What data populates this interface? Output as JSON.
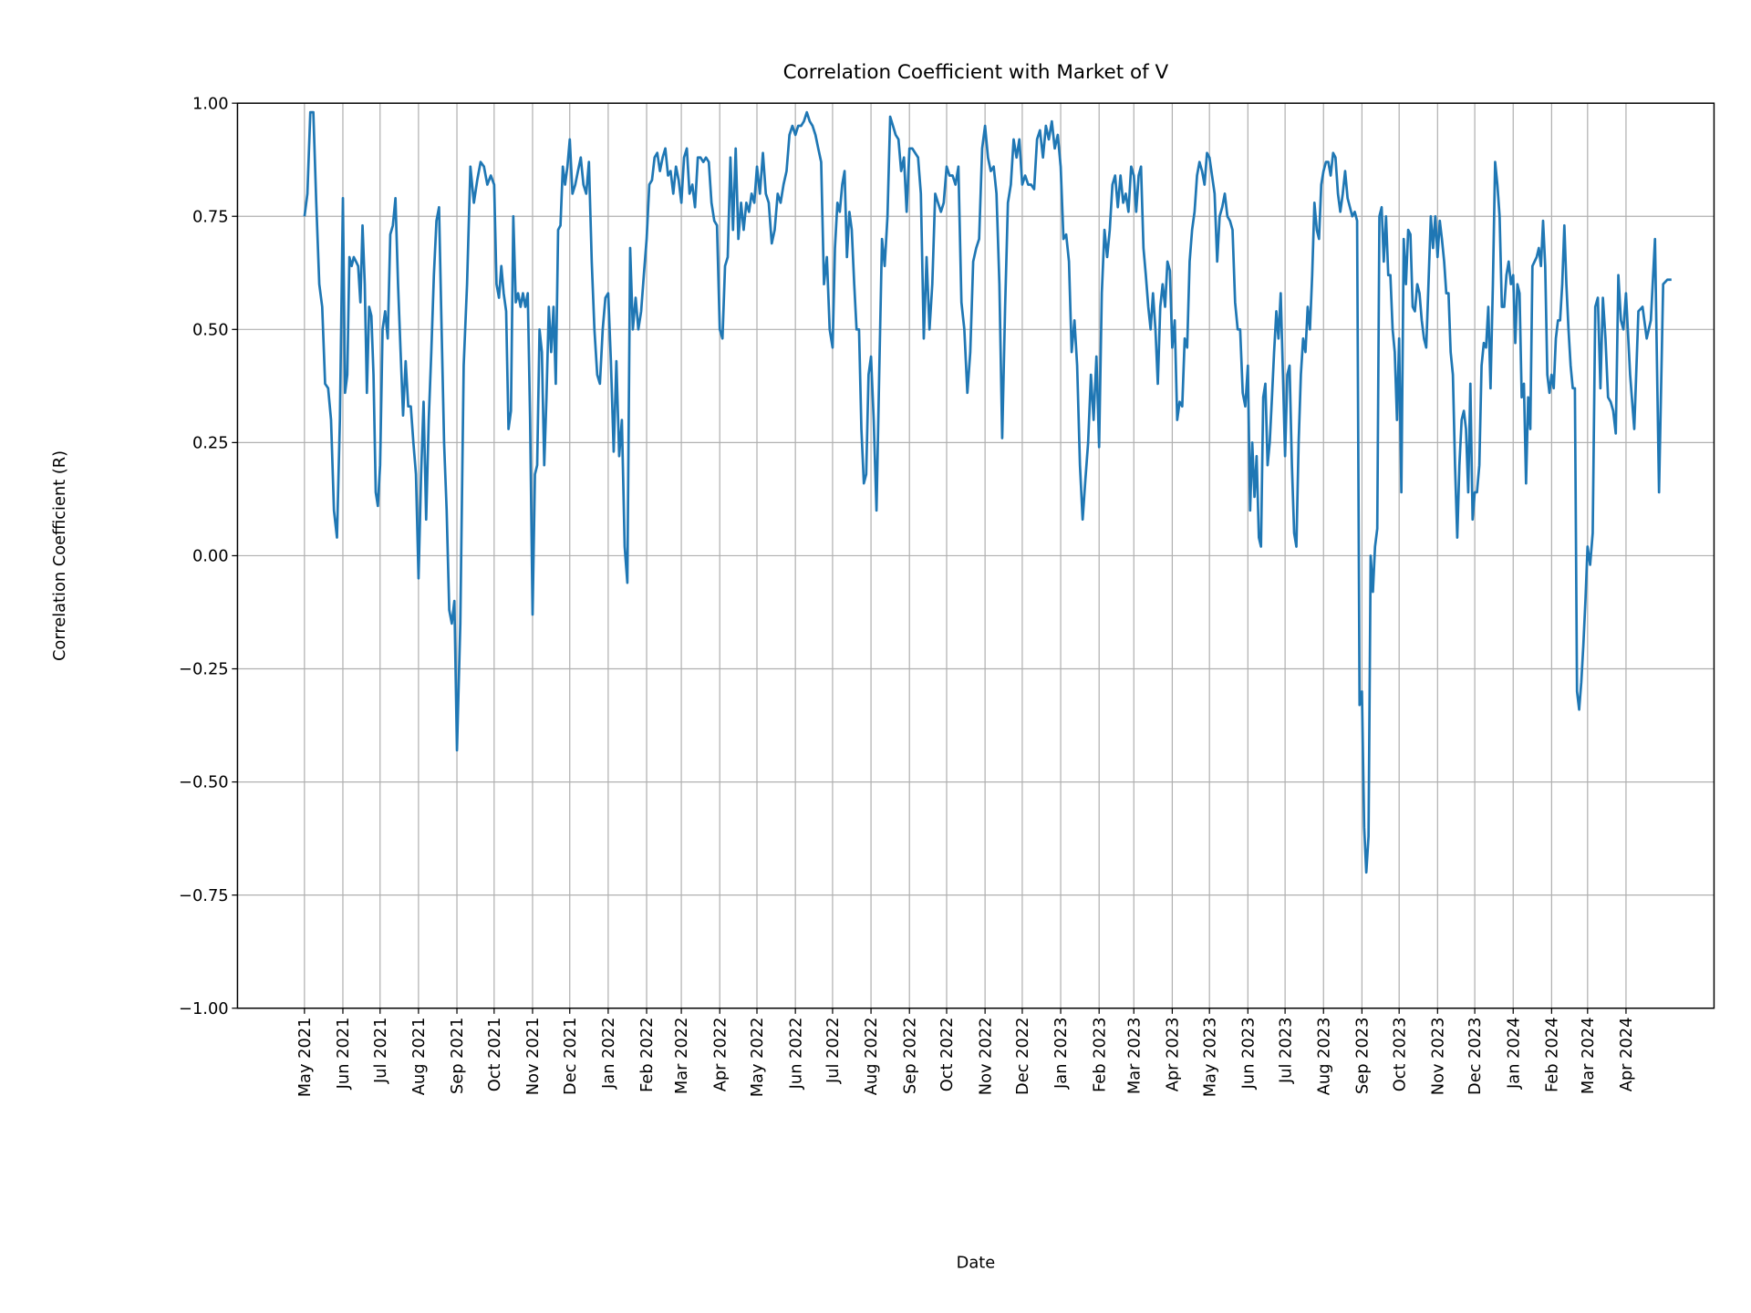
{
  "chart_data": {
    "type": "line",
    "title": "Correlation Coefficient with Market of V",
    "xlabel": "Date",
    "ylabel": "Correlation Coefficient (R)",
    "ylim": [
      -1.0,
      1.0
    ],
    "xlim": [
      "2021-03-08",
      "2024-06-11"
    ],
    "grid": true,
    "legend": "none",
    "line_color": "#1f77b4",
    "grid_color": "#b0b0b0",
    "yticks": [
      {
        "value": 1.0,
        "label": "1.00"
      },
      {
        "value": 0.75,
        "label": "0.75"
      },
      {
        "value": 0.5,
        "label": "0.50"
      },
      {
        "value": 0.25,
        "label": "0.25"
      },
      {
        "value": 0.0,
        "label": "0.00"
      },
      {
        "value": -0.25,
        "label": "−0.25"
      },
      {
        "value": -0.5,
        "label": "−0.50"
      },
      {
        "value": -0.75,
        "label": "−0.75"
      },
      {
        "value": -1.0,
        "label": "−1.00"
      }
    ],
    "xticks": [
      {
        "date": "2021-05-01",
        "label": "May 2021"
      },
      {
        "date": "2021-06-01",
        "label": "Jun 2021"
      },
      {
        "date": "2021-07-01",
        "label": "Jul 2021"
      },
      {
        "date": "2021-08-01",
        "label": "Aug 2021"
      },
      {
        "date": "2021-09-01",
        "label": "Sep 2021"
      },
      {
        "date": "2021-10-01",
        "label": "Oct 2021"
      },
      {
        "date": "2021-11-01",
        "label": "Nov 2021"
      },
      {
        "date": "2021-12-01",
        "label": "Dec 2021"
      },
      {
        "date": "2022-01-01",
        "label": "Jan 2022"
      },
      {
        "date": "2022-02-01",
        "label": "Feb 2022"
      },
      {
        "date": "2022-03-01",
        "label": "Mar 2022"
      },
      {
        "date": "2022-04-01",
        "label": "Apr 2022"
      },
      {
        "date": "2022-05-01",
        "label": "May 2022"
      },
      {
        "date": "2022-06-01",
        "label": "Jun 2022"
      },
      {
        "date": "2022-07-01",
        "label": "Jul 2022"
      },
      {
        "date": "2022-08-01",
        "label": "Aug 2022"
      },
      {
        "date": "2022-09-01",
        "label": "Sep 2022"
      },
      {
        "date": "2022-10-01",
        "label": "Oct 2022"
      },
      {
        "date": "2022-11-01",
        "label": "Nov 2022"
      },
      {
        "date": "2022-12-01",
        "label": "Dec 2022"
      },
      {
        "date": "2023-01-01",
        "label": "Jan 2023"
      },
      {
        "date": "2023-02-01",
        "label": "Feb 2023"
      },
      {
        "date": "2023-03-01",
        "label": "Mar 2023"
      },
      {
        "date": "2023-04-01",
        "label": "Apr 2023"
      },
      {
        "date": "2023-05-01",
        "label": "May 2023"
      },
      {
        "date": "2023-06-01",
        "label": "Jun 2023"
      },
      {
        "date": "2023-07-01",
        "label": "Jul 2023"
      },
      {
        "date": "2023-08-01",
        "label": "Aug 2023"
      },
      {
        "date": "2023-09-01",
        "label": "Sep 2023"
      },
      {
        "date": "2023-10-01",
        "label": "Oct 2023"
      },
      {
        "date": "2023-11-01",
        "label": "Nov 2023"
      },
      {
        "date": "2023-12-01",
        "label": "Dec 2023"
      },
      {
        "date": "2024-01-01",
        "label": "Jan 2024"
      },
      {
        "date": "2024-02-01",
        "label": "Feb 2024"
      },
      {
        "date": "2024-03-01",
        "label": "Mar 2024"
      },
      {
        "date": "2024-04-01",
        "label": "Apr 2024"
      }
    ],
    "series": [
      {
        "by_month": [
          {
            "month": "2021-05",
            "values": [
              0.75,
              0.8,
              0.98,
              0.98,
              0.78,
              0.6,
              0.55,
              0.38,
              0.37,
              0.3,
              0.1,
              0.04,
              0.3
            ]
          },
          {
            "month": "2021-06",
            "values": [
              0.79,
              0.36,
              0.4,
              0.66,
              0.64,
              0.66,
              0.65,
              0.64,
              0.56,
              0.73,
              0.6,
              0.36,
              0.55,
              0.53,
              0.4,
              0.14,
              0.11
            ]
          },
          {
            "month": "2021-07",
            "values": [
              0.2,
              0.5,
              0.54,
              0.48,
              0.71,
              0.73,
              0.79,
              0.6,
              0.45,
              0.31,
              0.43,
              0.33,
              0.33,
              0.25,
              0.18
            ]
          },
          {
            "month": "2021-08",
            "values": [
              -0.05,
              0.18,
              0.34,
              0.08,
              0.3,
              0.45,
              0.62,
              0.74,
              0.77,
              0.5,
              0.25,
              0.1,
              -0.12,
              -0.15,
              -0.1
            ]
          },
          {
            "month": "2021-09",
            "values": [
              -0.43,
              -0.15,
              0.42,
              0.6,
              0.86,
              0.78,
              0.83,
              0.87,
              0.86,
              0.82,
              0.84
            ]
          },
          {
            "month": "2021-10",
            "values": [
              0.82,
              0.6,
              0.57,
              0.64,
              0.58,
              0.54,
              0.28,
              0.32,
              0.75,
              0.56,
              0.58,
              0.55,
              0.58,
              0.55,
              0.58,
              0.3
            ]
          },
          {
            "month": "2021-11",
            "values": [
              -0.13,
              0.18,
              0.2,
              0.5,
              0.45,
              0.2,
              0.35,
              0.55,
              0.45,
              0.55,
              0.38,
              0.72,
              0.73,
              0.86,
              0.82,
              0.86
            ]
          },
          {
            "month": "2021-12",
            "values": [
              0.92,
              0.8,
              0.82,
              0.85,
              0.88,
              0.82,
              0.8,
              0.87,
              0.65,
              0.5,
              0.4,
              0.38,
              0.5,
              0.57
            ]
          },
          {
            "month": "2022-01",
            "values": [
              0.58,
              0.43,
              0.23,
              0.43,
              0.22,
              0.3,
              0.02,
              -0.06,
              0.68,
              0.5,
              0.57,
              0.5,
              0.54,
              0.62
            ]
          },
          {
            "month": "2022-02",
            "values": [
              0.7,
              0.82,
              0.83,
              0.88,
              0.89,
              0.85,
              0.88,
              0.9,
              0.84,
              0.85,
              0.8,
              0.86,
              0.83
            ]
          },
          {
            "month": "2022-03",
            "values": [
              0.78,
              0.88,
              0.9,
              0.8,
              0.82,
              0.77,
              0.88,
              0.88,
              0.87,
              0.88,
              0.87,
              0.78,
              0.74,
              0.73
            ]
          },
          {
            "month": "2022-04",
            "values": [
              0.5,
              0.48,
              0.64,
              0.66,
              0.88,
              0.72,
              0.9,
              0.7,
              0.78,
              0.72,
              0.78,
              0.76,
              0.8,
              0.78
            ]
          },
          {
            "month": "2022-05",
            "values": [
              0.86,
              0.8,
              0.89,
              0.8,
              0.78,
              0.69,
              0.72,
              0.8,
              0.78,
              0.82,
              0.85,
              0.93,
              0.95
            ]
          },
          {
            "month": "2022-06",
            "values": [
              0.93,
              0.95,
              0.95,
              0.96,
              0.98,
              0.96,
              0.95,
              0.93,
              0.9,
              0.87,
              0.6,
              0.66,
              0.5
            ]
          },
          {
            "month": "2022-07",
            "values": [
              0.46,
              0.68,
              0.78,
              0.76,
              0.82,
              0.85,
              0.66,
              0.76,
              0.72,
              0.6,
              0.5,
              0.5,
              0.28,
              0.16,
              0.18,
              0.4
            ]
          },
          {
            "month": "2022-08",
            "values": [
              0.44,
              0.3,
              0.1,
              0.4,
              0.7,
              0.64,
              0.75,
              0.97,
              0.95,
              0.93,
              0.92,
              0.85,
              0.88,
              0.76
            ]
          },
          {
            "month": "2022-09",
            "values": [
              0.9,
              0.9,
              0.89,
              0.88,
              0.8,
              0.48,
              0.66,
              0.5,
              0.6,
              0.8,
              0.78,
              0.76,
              0.78
            ]
          },
          {
            "month": "2022-10",
            "values": [
              0.86,
              0.84,
              0.84,
              0.82,
              0.86,
              0.56,
              0.5,
              0.36,
              0.45,
              0.65,
              0.68,
              0.7,
              0.9
            ]
          },
          {
            "month": "2022-11",
            "values": [
              0.95,
              0.88,
              0.85,
              0.86,
              0.8,
              0.6,
              0.26,
              0.55,
              0.78,
              0.82,
              0.92,
              0.88,
              0.92
            ]
          },
          {
            "month": "2022-12",
            "values": [
              0.82,
              0.84,
              0.82,
              0.82,
              0.81,
              0.92,
              0.94,
              0.88,
              0.95,
              0.92,
              0.96,
              0.9,
              0.93
            ]
          },
          {
            "month": "2023-01",
            "values": [
              0.86,
              0.7,
              0.71,
              0.65,
              0.45,
              0.52,
              0.42,
              0.2,
              0.08,
              0.17,
              0.25,
              0.4,
              0.3,
              0.44
            ]
          },
          {
            "month": "2023-02",
            "values": [
              0.24,
              0.58,
              0.72,
              0.66,
              0.72,
              0.82,
              0.84,
              0.77,
              0.84,
              0.78,
              0.8,
              0.76,
              0.86
            ]
          },
          {
            "month": "2023-03",
            "values": [
              0.84,
              0.76,
              0.84,
              0.86,
              0.68,
              0.62,
              0.55,
              0.5,
              0.58,
              0.5,
              0.38,
              0.55,
              0.6,
              0.55,
              0.65,
              0.63
            ]
          },
          {
            "month": "2023-04",
            "values": [
              0.46,
              0.52,
              0.3,
              0.34,
              0.33,
              0.48,
              0.46,
              0.65,
              0.72,
              0.76,
              0.84,
              0.87,
              0.85,
              0.82,
              0.89
            ]
          },
          {
            "month": "2023-05",
            "values": [
              0.88,
              0.84,
              0.8,
              0.65,
              0.75,
              0.77,
              0.8,
              0.75,
              0.74,
              0.72,
              0.56,
              0.5,
              0.5,
              0.36,
              0.33
            ]
          },
          {
            "month": "2023-06",
            "values": [
              0.42,
              0.1,
              0.25,
              0.13,
              0.22,
              0.04,
              0.02,
              0.35,
              0.38,
              0.2,
              0.25,
              0.35,
              0.45,
              0.54,
              0.48,
              0.58,
              0.4
            ]
          },
          {
            "month": "2023-07",
            "values": [
              0.22,
              0.4,
              0.42,
              0.2,
              0.05,
              0.02,
              0.25,
              0.4,
              0.48,
              0.45,
              0.55,
              0.5,
              0.62,
              0.78,
              0.72,
              0.7,
              0.82
            ]
          },
          {
            "month": "2023-08",
            "values": [
              0.85,
              0.87,
              0.87,
              0.84,
              0.89,
              0.88,
              0.8,
              0.76,
              0.8,
              0.85,
              0.79,
              0.77,
              0.75,
              0.76,
              0.74,
              -0.33
            ]
          },
          {
            "month": "2023-09",
            "values": [
              -0.3,
              -0.6,
              -0.7,
              -0.62,
              0.0,
              -0.08,
              0.02,
              0.06,
              0.75,
              0.77,
              0.65,
              0.75,
              0.62,
              0.62,
              0.5,
              0.45,
              0.3
            ]
          },
          {
            "month": "2023-10",
            "values": [
              0.48,
              0.14,
              0.7,
              0.6,
              0.72,
              0.71,
              0.55,
              0.54,
              0.6,
              0.58,
              0.52,
              0.48,
              0.46,
              0.6,
              0.75,
              0.68,
              0.75
            ]
          },
          {
            "month": "2023-11",
            "values": [
              0.66,
              0.74,
              0.7,
              0.65,
              0.58,
              0.58,
              0.45,
              0.4,
              0.2,
              0.04,
              0.2,
              0.3,
              0.32,
              0.28,
              0.14,
              0.38,
              0.08
            ]
          },
          {
            "month": "2023-12",
            "values": [
              0.14,
              0.14,
              0.2,
              0.42,
              0.47,
              0.46,
              0.55,
              0.37,
              0.6,
              0.87,
              0.82,
              0.75,
              0.55,
              0.55,
              0.62,
              0.65,
              0.6
            ]
          },
          {
            "month": "2024-01",
            "values": [
              0.62,
              0.47,
              0.6,
              0.58,
              0.35,
              0.38,
              0.16,
              0.35,
              0.28,
              0.64,
              0.65,
              0.66,
              0.68,
              0.64,
              0.74,
              0.64,
              0.4,
              0.36
            ]
          },
          {
            "month": "2024-02",
            "values": [
              0.4,
              0.37,
              0.48,
              0.52,
              0.52,
              0.6,
              0.73,
              0.6,
              0.5,
              0.42,
              0.37,
              0.37,
              -0.3,
              -0.34,
              -0.28,
              -0.2,
              -0.1
            ]
          },
          {
            "month": "2024-03",
            "values": [
              0.02,
              -0.02,
              0.05,
              0.55,
              0.57,
              0.37,
              0.57,
              0.48,
              0.35,
              0.34,
              0.32,
              0.27,
              0.62,
              0.52,
              0.5
            ]
          },
          {
            "month": "2024-04",
            "values": [
              0.58,
              0.4,
              0.28,
              0.54,
              0.55,
              0.48,
              0.52,
              0.7,
              0.14,
              0.6,
              0.61,
              0.61
            ]
          }
        ]
      }
    ]
  }
}
